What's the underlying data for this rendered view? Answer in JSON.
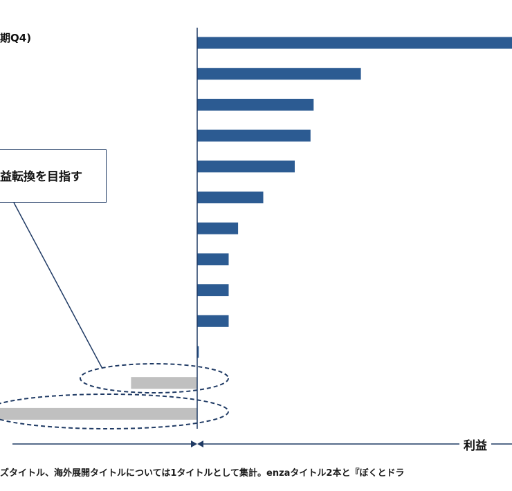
{
  "chart_data": {
    "type": "bar",
    "orientation": "horizontal",
    "title": "期Q4)",
    "xlabel": "利益",
    "values": [
      100,
      52,
      37,
      36,
      31,
      21,
      13,
      10,
      10,
      10,
      0.5,
      -21,
      -64
    ],
    "series_colors": {
      "positive": "#2c5b92",
      "negative": "#c0c0c0"
    },
    "annotation": "益転換を目指す",
    "footnote": "ズタイトル、海外展開タイトルについては1タイトルとして集計。enzaタイトル2本と『ぼくとドラ"
  }
}
